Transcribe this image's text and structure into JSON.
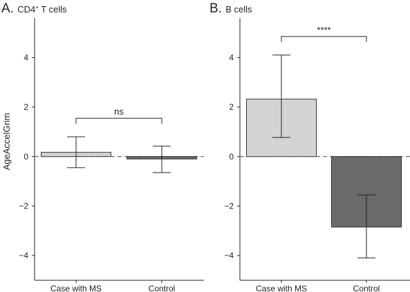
{
  "figure": {
    "ylabel": "AgeAccelGrim"
  },
  "chart_data": [
    {
      "type": "bar",
      "panel_letter": "A.",
      "title": "CD4",
      "title_superscript": "+",
      "title_suffix": " T cells",
      "categories": [
        "Case with MS",
        "Control"
      ],
      "values": [
        0.17,
        -0.1
      ],
      "error_low": [
        -0.45,
        -0.65
      ],
      "error_high": [
        0.8,
        0.42
      ],
      "bar_colors": [
        "#d4d4d4",
        "#6a6a6a"
      ],
      "ylabel": "AgeAccelGrim",
      "ylim": [
        -5,
        5.6
      ],
      "yticks": [
        -4,
        -2,
        0,
        2,
        4
      ],
      "ytick_labels": [
        "−4",
        "−2",
        "0",
        "2",
        "4"
      ],
      "zero_line": "dashed",
      "significance": {
        "label": "ns",
        "y": 1.55
      },
      "grid": false
    },
    {
      "type": "bar",
      "panel_letter": "B.",
      "title": "B cells",
      "title_superscript": "",
      "title_suffix": "",
      "categories": [
        "Case with MS",
        "Control"
      ],
      "values": [
        2.32,
        -2.85
      ],
      "error_low": [
        0.77,
        -4.1
      ],
      "error_high": [
        4.1,
        -1.55
      ],
      "bar_colors": [
        "#d4d4d4",
        "#6a6a6a"
      ],
      "ylabel": "",
      "ylim": [
        -5,
        5.6
      ],
      "yticks": [
        -4,
        -2,
        0,
        2,
        4
      ],
      "ytick_labels": [
        "−4",
        "−2",
        "0",
        "2",
        "4"
      ],
      "zero_line": "dashed",
      "significance": {
        "label": "****",
        "y": 4.85
      },
      "grid": false
    }
  ]
}
